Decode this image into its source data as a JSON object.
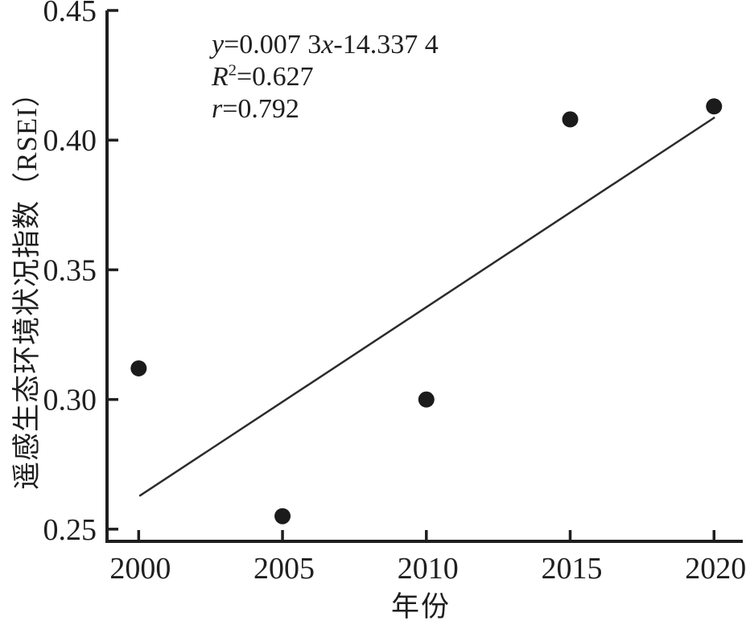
{
  "figure": {
    "background": "#ffffff",
    "ink_color": "#1f1f1f"
  },
  "chart_data": {
    "type": "scatter",
    "title": "",
    "xlabel": "年份",
    "ylabel": "遥感生态环境状况指数（RSEI）",
    "x": [
      2000,
      2005,
      2010,
      2015,
      2020
    ],
    "y": [
      0.312,
      0.255,
      0.3,
      0.408,
      0.413
    ],
    "x_ticks": [
      "2000",
      "2005",
      "2010",
      "2015",
      "2020"
    ],
    "y_ticks": [
      "0.45",
      "0.40",
      "0.35",
      "0.30",
      "0.25"
    ],
    "xlim": [
      1998.9,
      2021.0
    ],
    "ylim": [
      0.2453,
      0.45
    ],
    "grid": false,
    "legend": "none",
    "marker": {
      "shape": "circle",
      "radius": 10,
      "color": "#1b1b1b"
    },
    "trendline": {
      "slope": 0.0073,
      "intercept": -14.3374,
      "x_start": 2000.05,
      "x_end": 2020.0,
      "color": "#2b2b2b"
    },
    "annotation": {
      "equation": {
        "lhs": "y",
        "mid": "=0.007 3",
        "var2": "x",
        "tail": "-14.337 4"
      },
      "r_squared": {
        "symbol": "R",
        "sup": "2",
        "value": "=0.627"
      },
      "r": {
        "symbol": "r",
        "value": "=0.792"
      }
    }
  }
}
